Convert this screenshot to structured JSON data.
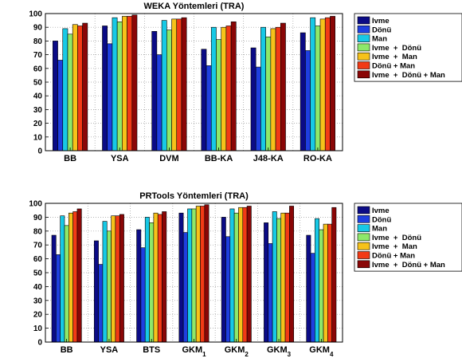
{
  "colors": [
    "#0b0b86",
    "#1f3fe0",
    "#17c9e6",
    "#8ee86a",
    "#f6c21a",
    "#f23a16",
    "#8a0606"
  ],
  "chart_data": [
    {
      "type": "bar",
      "title": "WEKA Yöntemleri (TRA)",
      "xlabel": "",
      "ylabel": "",
      "ylim": [
        0,
        100
      ],
      "yticks": [
        "0",
        "10",
        "20",
        "30",
        "40",
        "50",
        "60",
        "70",
        "80",
        "90",
        "100"
      ],
      "grid": "dotted",
      "legend_position": "right",
      "categories": [
        {
          "label": "BB",
          "sub": ""
        },
        {
          "label": "YSA",
          "sub": ""
        },
        {
          "label": "DVM",
          "sub": ""
        },
        {
          "label": "BB-KA",
          "sub": ""
        },
        {
          "label": "J48-KA",
          "sub": ""
        },
        {
          "label": "RO-KA",
          "sub": ""
        }
      ],
      "series": [
        {
          "name": "Ivme",
          "values": [
            80,
            91,
            87,
            74,
            75,
            86
          ]
        },
        {
          "name": "Dönü",
          "values": [
            66,
            78,
            70,
            62,
            61,
            73
          ]
        },
        {
          "name": "Man",
          "values": [
            89,
            97,
            95,
            90,
            90,
            97
          ]
        },
        {
          "name": "Ivme  +  Dönü",
          "values": [
            85,
            94,
            88,
            81,
            83,
            91
          ]
        },
        {
          "name": "Ivme  +  Man",
          "values": [
            92,
            98,
            96,
            90,
            89,
            96
          ]
        },
        {
          "name": "Dönü + Man",
          "values": [
            91,
            98,
            96,
            91,
            90,
            97
          ]
        },
        {
          "name": "Ivme  +  Dönü + Man",
          "values": [
            93,
            99,
            97,
            94,
            93,
            98
          ]
        }
      ]
    },
    {
      "type": "bar",
      "title": "PRTools Yöntemleri (TRA)",
      "xlabel": "",
      "ylabel": "",
      "ylim": [
        0,
        100
      ],
      "yticks": [
        "0",
        "10",
        "20",
        "30",
        "40",
        "50",
        "60",
        "70",
        "80",
        "90",
        "100"
      ],
      "grid": "dotted",
      "legend_position": "right",
      "categories": [
        {
          "label": "BB",
          "sub": ""
        },
        {
          "label": "YSA",
          "sub": ""
        },
        {
          "label": "BTS",
          "sub": ""
        },
        {
          "label": "GKM",
          "sub": "1"
        },
        {
          "label": "GKM",
          "sub": "2"
        },
        {
          "label": "GKM",
          "sub": "3"
        },
        {
          "label": "GKM",
          "sub": "4"
        }
      ],
      "series": [
        {
          "name": "Ivme",
          "values": [
            77,
            73,
            81,
            93,
            90,
            86,
            77
          ]
        },
        {
          "name": "Dönü",
          "values": [
            63,
            56,
            68,
            79,
            76,
            71,
            64
          ]
        },
        {
          "name": "Man",
          "values": [
            91,
            87,
            90,
            96,
            96,
            94,
            89
          ]
        },
        {
          "name": "Ivme  +  Dönü",
          "values": [
            84,
            80,
            86,
            96,
            93,
            89,
            81
          ]
        },
        {
          "name": "Ivme  +  Man",
          "values": [
            93,
            91,
            93,
            98,
            97,
            93,
            85
          ]
        },
        {
          "name": "Dönü + Man",
          "values": [
            94,
            91,
            92,
            98,
            97,
            93,
            85
          ]
        },
        {
          "name": "Ivme  +  Dönü + Man",
          "values": [
            96,
            92,
            94,
            99,
            98,
            98,
            97
          ]
        }
      ]
    }
  ]
}
